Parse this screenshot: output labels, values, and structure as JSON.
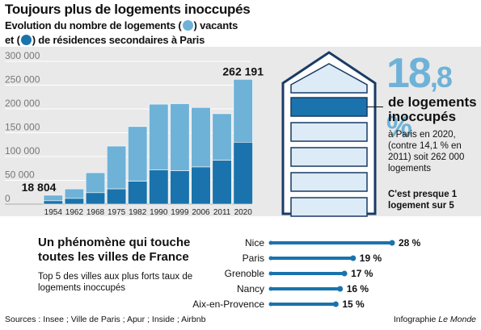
{
  "header": {
    "title": "Toujours plus de logements inoccupés",
    "subtitle_line1_a": "Evolution du nombre de logements (",
    "subtitle_line1_b": ") vacants",
    "subtitle_line2_a": "et (",
    "subtitle_line2_b": ") de résidences secondaires à Paris"
  },
  "colors": {
    "light_blue": "#6fb2d8",
    "dark_blue": "#1a73ac",
    "house_fill": "#dcebf6",
    "house_stroke": "#1a3a66",
    "background_band": "#e9e9e9"
  },
  "chart_data": [
    {
      "type": "bar",
      "stacked": true,
      "categories": [
        "1954",
        "1962",
        "1968",
        "1975",
        "1982",
        "1990",
        "1999",
        "2006",
        "2011",
        "2020"
      ],
      "series": [
        {
          "name": "résidences secondaires",
          "color": "#1a73ac",
          "values": [
            7000,
            12000,
            24000,
            32000,
            48000,
            72000,
            70000,
            78000,
            92000,
            130000
          ]
        },
        {
          "name": "vacants",
          "color": "#6fb2d8",
          "values": [
            11804,
            20000,
            42000,
            90000,
            115000,
            138000,
            141000,
            125000,
            98000,
            132191
          ]
        }
      ],
      "totals_labeled": {
        "1954": "18 804",
        "2020": "262 191"
      },
      "y_ticks": [
        "0",
        "50 000",
        "100 000",
        "150 000",
        "200 000",
        "250 000",
        "300 000"
      ],
      "ylim": [
        0,
        300000
      ],
      "grid": true
    },
    {
      "type": "bar",
      "orientation": "horizontal",
      "categories": [
        "Nice",
        "Paris",
        "Grenoble",
        "Nancy",
        "Aix-en-Provence"
      ],
      "values": [
        28,
        19,
        17,
        16,
        15
      ],
      "value_labels": [
        "28 %",
        "19 %",
        "17 %",
        "16 %",
        "15 %"
      ],
      "unit": "%",
      "color": "#1a73ac"
    }
  ],
  "house": {
    "pct_main": "18",
    "pct_small": ",8 %",
    "headline": "de logements inoccupés",
    "body": "à Paris en 2020, (contre 14,1 % en 2011) soit 262 000 logements",
    "footnote": "C'est presque 1 logement sur 5"
  },
  "cities_panel": {
    "title": "Un phénomène qui touche toutes les villes de France",
    "body": "Top 5 des villes aux plus forts taux de logements inoccupés"
  },
  "footer": {
    "sources": "Sources : Insee ; Ville de Paris ; Apur ; Inside ; Airbnb",
    "credit_prefix": "Infographie ",
    "credit_name": "Le Monde"
  }
}
